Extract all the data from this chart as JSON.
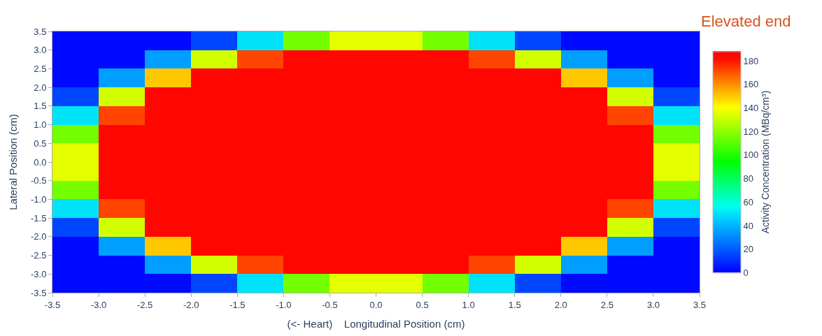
{
  "chart_data": {
    "type": "heatmap",
    "xlabel": "(<- Heart)    Longitudinal Position (cm)",
    "ylabel": "Lateral Position (cm)",
    "clabel": "Activity Concentration (MBq/cm³)",
    "annotations": [
      "Elevated end"
    ],
    "x": [
      -3.25,
      -2.75,
      -2.25,
      -1.75,
      -1.25,
      -0.75,
      -0.25,
      0.25,
      0.75,
      1.25,
      1.75,
      2.25,
      2.75,
      3.25
    ],
    "y": [
      3.25,
      2.75,
      2.25,
      1.75,
      1.25,
      0.75,
      0.25,
      -0.25,
      -0.75,
      -1.25,
      -1.75,
      -2.25,
      -2.75,
      -3.25
    ],
    "cells": [
      [
        2,
        2,
        2,
        15,
        50,
        115,
        135,
        135,
        115,
        50,
        15,
        2,
        2,
        2
      ],
      [
        2,
        2,
        35,
        132,
        172,
        185,
        185,
        185,
        185,
        172,
        132,
        35,
        2,
        2
      ],
      [
        2,
        35,
        150,
        185,
        185,
        185,
        185,
        185,
        185,
        185,
        185,
        150,
        35,
        2
      ],
      [
        15,
        132,
        185,
        185,
        185,
        185,
        185,
        185,
        185,
        185,
        185,
        185,
        132,
        15
      ],
      [
        50,
        172,
        185,
        185,
        185,
        185,
        185,
        185,
        185,
        185,
        185,
        185,
        172,
        50
      ],
      [
        115,
        185,
        185,
        185,
        185,
        185,
        185,
        185,
        185,
        185,
        185,
        185,
        185,
        115
      ],
      [
        135,
        185,
        185,
        185,
        185,
        185,
        185,
        185,
        185,
        185,
        185,
        185,
        185,
        135
      ],
      [
        135,
        185,
        185,
        185,
        185,
        185,
        185,
        185,
        185,
        185,
        185,
        185,
        185,
        135
      ],
      [
        115,
        185,
        185,
        185,
        185,
        185,
        185,
        185,
        185,
        185,
        185,
        185,
        185,
        115
      ],
      [
        50,
        172,
        185,
        185,
        185,
        185,
        185,
        185,
        185,
        185,
        185,
        185,
        172,
        50
      ],
      [
        15,
        132,
        185,
        185,
        185,
        185,
        185,
        185,
        185,
        185,
        185,
        185,
        132,
        15
      ],
      [
        2,
        35,
        150,
        185,
        185,
        185,
        185,
        185,
        185,
        185,
        185,
        150,
        35,
        2
      ],
      [
        2,
        2,
        35,
        132,
        172,
        185,
        185,
        185,
        185,
        172,
        132,
        35,
        2,
        2
      ],
      [
        2,
        2,
        2,
        15,
        50,
        115,
        135,
        135,
        115,
        50,
        15,
        2,
        2,
        2
      ]
    ],
    "clim": [
      0,
      188
    ],
    "cticks": [
      0,
      20,
      40,
      60,
      80,
      100,
      120,
      140,
      160,
      180
    ],
    "xlim": [
      -3.5,
      3.5
    ],
    "xticks": [
      {
        "value": -3.5,
        "label": "-3.5"
      },
      {
        "value": -3.0,
        "label": "-3.0"
      },
      {
        "value": -2.5,
        "label": "-2.5"
      },
      {
        "value": -2.0,
        "label": "-2.0"
      },
      {
        "value": -1.5,
        "label": "-1.5"
      },
      {
        "value": -1.0,
        "label": "-1.0"
      },
      {
        "value": -0.5,
        "label": "-0.5"
      },
      {
        "value": 0,
        "label": "0.0"
      },
      {
        "value": 0.5,
        "label": "0.5"
      },
      {
        "value": 1.0,
        "label": "1.0"
      },
      {
        "value": 1.5,
        "label": "1.5"
      },
      {
        "value": 2.0,
        "label": "2.0"
      },
      {
        "value": 2.5,
        "label": "2.5"
      },
      {
        "value": 3.0,
        "label": "3.0"
      },
      {
        "value": 3.5,
        "label": "3.5"
      }
    ],
    "ylim": [
      -3.5,
      3.5
    ],
    "yticks": [
      {
        "value": -3.5,
        "label": "-3.5"
      },
      {
        "value": -3.0,
        "label": "-3.0"
      },
      {
        "value": -2.5,
        "label": "-2.5"
      },
      {
        "value": -2.0,
        "label": "-2.0"
      },
      {
        "value": -1.5,
        "label": "-1.5"
      },
      {
        "value": -1.0,
        "label": "-1.0"
      },
      {
        "value": -0.5,
        "label": "-0.5"
      },
      {
        "value": 0,
        "label": "0.0"
      },
      {
        "value": 0.5,
        "label": "0.5"
      },
      {
        "value": 1.0,
        "label": "1.0"
      },
      {
        "value": 1.5,
        "label": "1.5"
      },
      {
        "value": 2.0,
        "label": "2.0"
      },
      {
        "value": 2.5,
        "label": "2.5"
      },
      {
        "value": 3.0,
        "label": "3.0"
      },
      {
        "value": 3.5,
        "label": "3.5"
      }
    ]
  }
}
